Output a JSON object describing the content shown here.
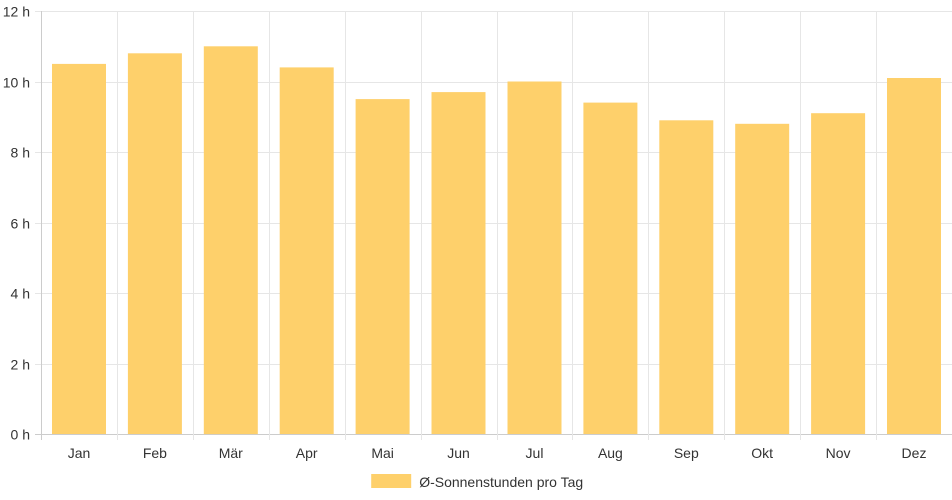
{
  "chart_data": {
    "type": "bar",
    "categories": [
      "Jan",
      "Feb",
      "Mär",
      "Apr",
      "Mai",
      "Jun",
      "Jul",
      "Aug",
      "Sep",
      "Okt",
      "Nov",
      "Dez"
    ],
    "series": [
      {
        "name": "Ø-Sonnenstunden pro Tag",
        "values": [
          10.5,
          10.8,
          11.0,
          10.4,
          9.5,
          9.7,
          10.0,
          9.4,
          8.9,
          8.8,
          9.1,
          10.1
        ],
        "color": "#fed06b"
      }
    ],
    "ylim": [
      0,
      12
    ],
    "y_ticks": [
      0,
      2,
      4,
      6,
      8,
      10,
      12
    ],
    "y_unit": "h",
    "grid": true,
    "legend_position": "bottom",
    "xlabel": "",
    "ylabel": "",
    "title": ""
  }
}
